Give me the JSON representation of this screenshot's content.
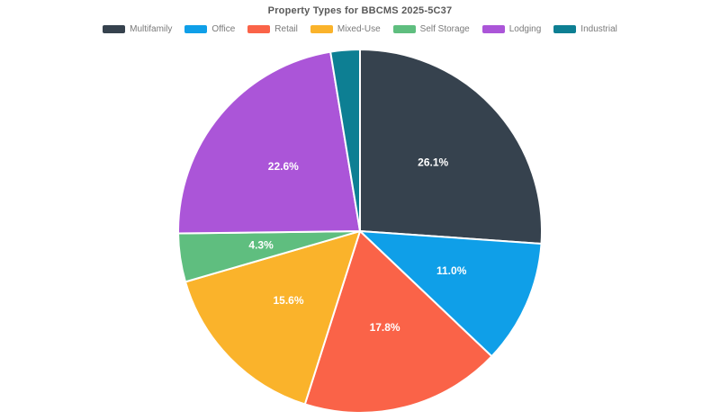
{
  "chart_data": {
    "type": "pie",
    "title": "Property Types for BBCMS 2025-5C37",
    "legend_position": "top",
    "direction": "clockwise",
    "start_angle_deg": 0,
    "slice_border_color": "#ffffff",
    "label_color": "#ffffff",
    "slices": [
      {
        "label": "Multifamily",
        "value": 26.1,
        "percent_label": "26.1%",
        "color": "#36424E"
      },
      {
        "label": "Office",
        "value": 11.0,
        "percent_label": "11.0%",
        "color": "#0F9FE8"
      },
      {
        "label": "Retail",
        "value": 17.8,
        "percent_label": "17.8%",
        "color": "#FA6348"
      },
      {
        "label": "Mixed-Use",
        "value": 15.6,
        "percent_label": "15.6%",
        "color": "#FAB32B"
      },
      {
        "label": "Self Storage",
        "value": 4.3,
        "percent_label": "4.3%",
        "color": "#5FBE7F"
      },
      {
        "label": "Lodging",
        "value": 22.6,
        "percent_label": "22.6%",
        "color": "#AB55D8"
      },
      {
        "label": "Industrial",
        "value": 2.6,
        "percent_label": "",
        "color": "#0D7F93"
      }
    ]
  }
}
